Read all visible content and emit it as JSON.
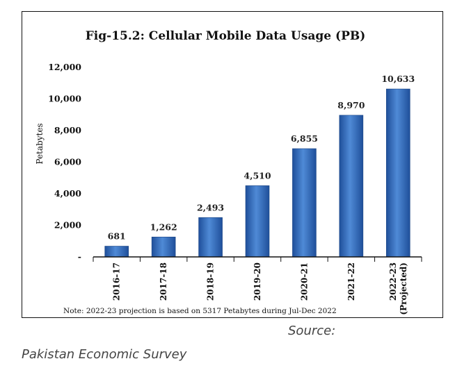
{
  "chart_data": {
    "type": "bar",
    "title": "Fig-15.2: Cellular Mobile Data Usage (PB)",
    "ylabel": "Petabytes",
    "xlabel": "",
    "categories": [
      "2016-17",
      "2017-18",
      "2018-19",
      "2019-20",
      "2020-21",
      "2021-22",
      "2022-23 (Projected)"
    ],
    "category_lines": [
      [
        "2016-17"
      ],
      [
        "2017-18"
      ],
      [
        "2018-19"
      ],
      [
        "2019-20"
      ],
      [
        "2020-21"
      ],
      [
        "2021-22"
      ],
      [
        "2022-23",
        "(Projected)"
      ]
    ],
    "values": [
      681,
      1262,
      2493,
      4510,
      6855,
      8970,
      10633
    ],
    "value_labels": [
      "681",
      "1,262",
      "2,493",
      "4,510",
      "6,855",
      "8,970",
      "10,633"
    ],
    "y_ticks": [
      0,
      2000,
      4000,
      6000,
      8000,
      10000,
      12000
    ],
    "y_tick_labels": [
      "-",
      "2,000",
      "4,000",
      "6,000",
      "8,000",
      "10,000",
      "12,000"
    ],
    "ylim": [
      0,
      12000
    ],
    "grid": false,
    "legend": "none",
    "bar_color": "#3a73c4",
    "note": "Note: 2022-23 projection is based on 5317 Petabytes during Jul-Dec 2022"
  },
  "source": {
    "label": "Source:",
    "name": "Pakistan Economic Survey"
  }
}
